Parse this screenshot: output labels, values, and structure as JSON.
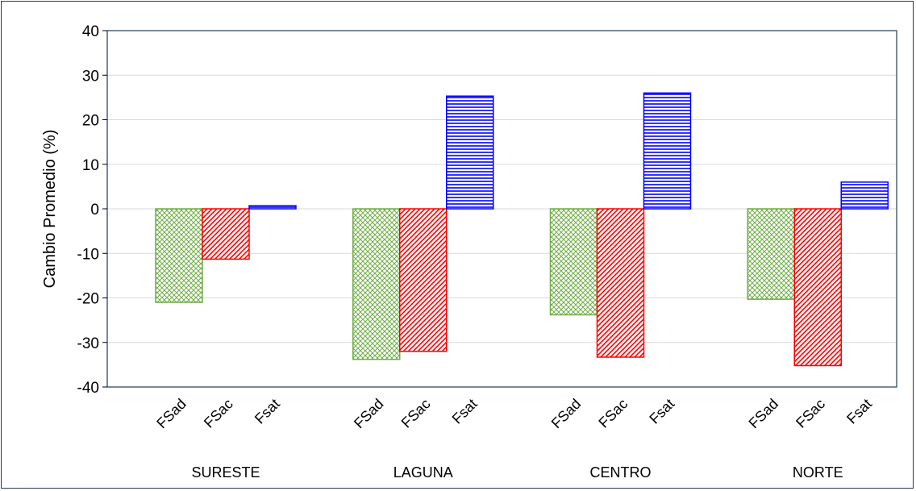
{
  "chart_data": {
    "type": "bar",
    "title": "",
    "xlabel": "",
    "ylabel": "Cambio Promedio (%)",
    "ylim": [
      -40,
      40
    ],
    "yticks": [
      40,
      30,
      20,
      10,
      0,
      -10,
      -20,
      -30,
      -40
    ],
    "grid": true,
    "legend": "none",
    "groups": [
      {
        "name": "SURESTE",
        "bars": [
          {
            "label": "FSad",
            "value": -21
          },
          {
            "label": "FSac",
            "value": -11.3
          },
          {
            "label": "Fsat",
            "value": 0.7
          }
        ]
      },
      {
        "name": "LAGUNA",
        "bars": [
          {
            "label": "FSad",
            "value": -33.8
          },
          {
            "label": "FSac",
            "value": -32
          },
          {
            "label": "Fsat",
            "value": 25.3
          }
        ]
      },
      {
        "name": "CENTRO",
        "bars": [
          {
            "label": "FSad",
            "value": -23.8
          },
          {
            "label": "FSac",
            "value": -33.3
          },
          {
            "label": "Fsat",
            "value": 26
          }
        ]
      },
      {
        "name": "NORTE",
        "bars": [
          {
            "label": "FSad",
            "value": -20.3
          },
          {
            "label": "FSac",
            "value": -35.2
          },
          {
            "label": "Fsat",
            "value": 6
          }
        ]
      }
    ],
    "colors": {
      "FSad": "#70ad47",
      "FSac": "#ff0000",
      "Fsat": "#0000ff",
      "grid": "#d9d9d9",
      "plot_border": "#1f3b5c"
    }
  }
}
